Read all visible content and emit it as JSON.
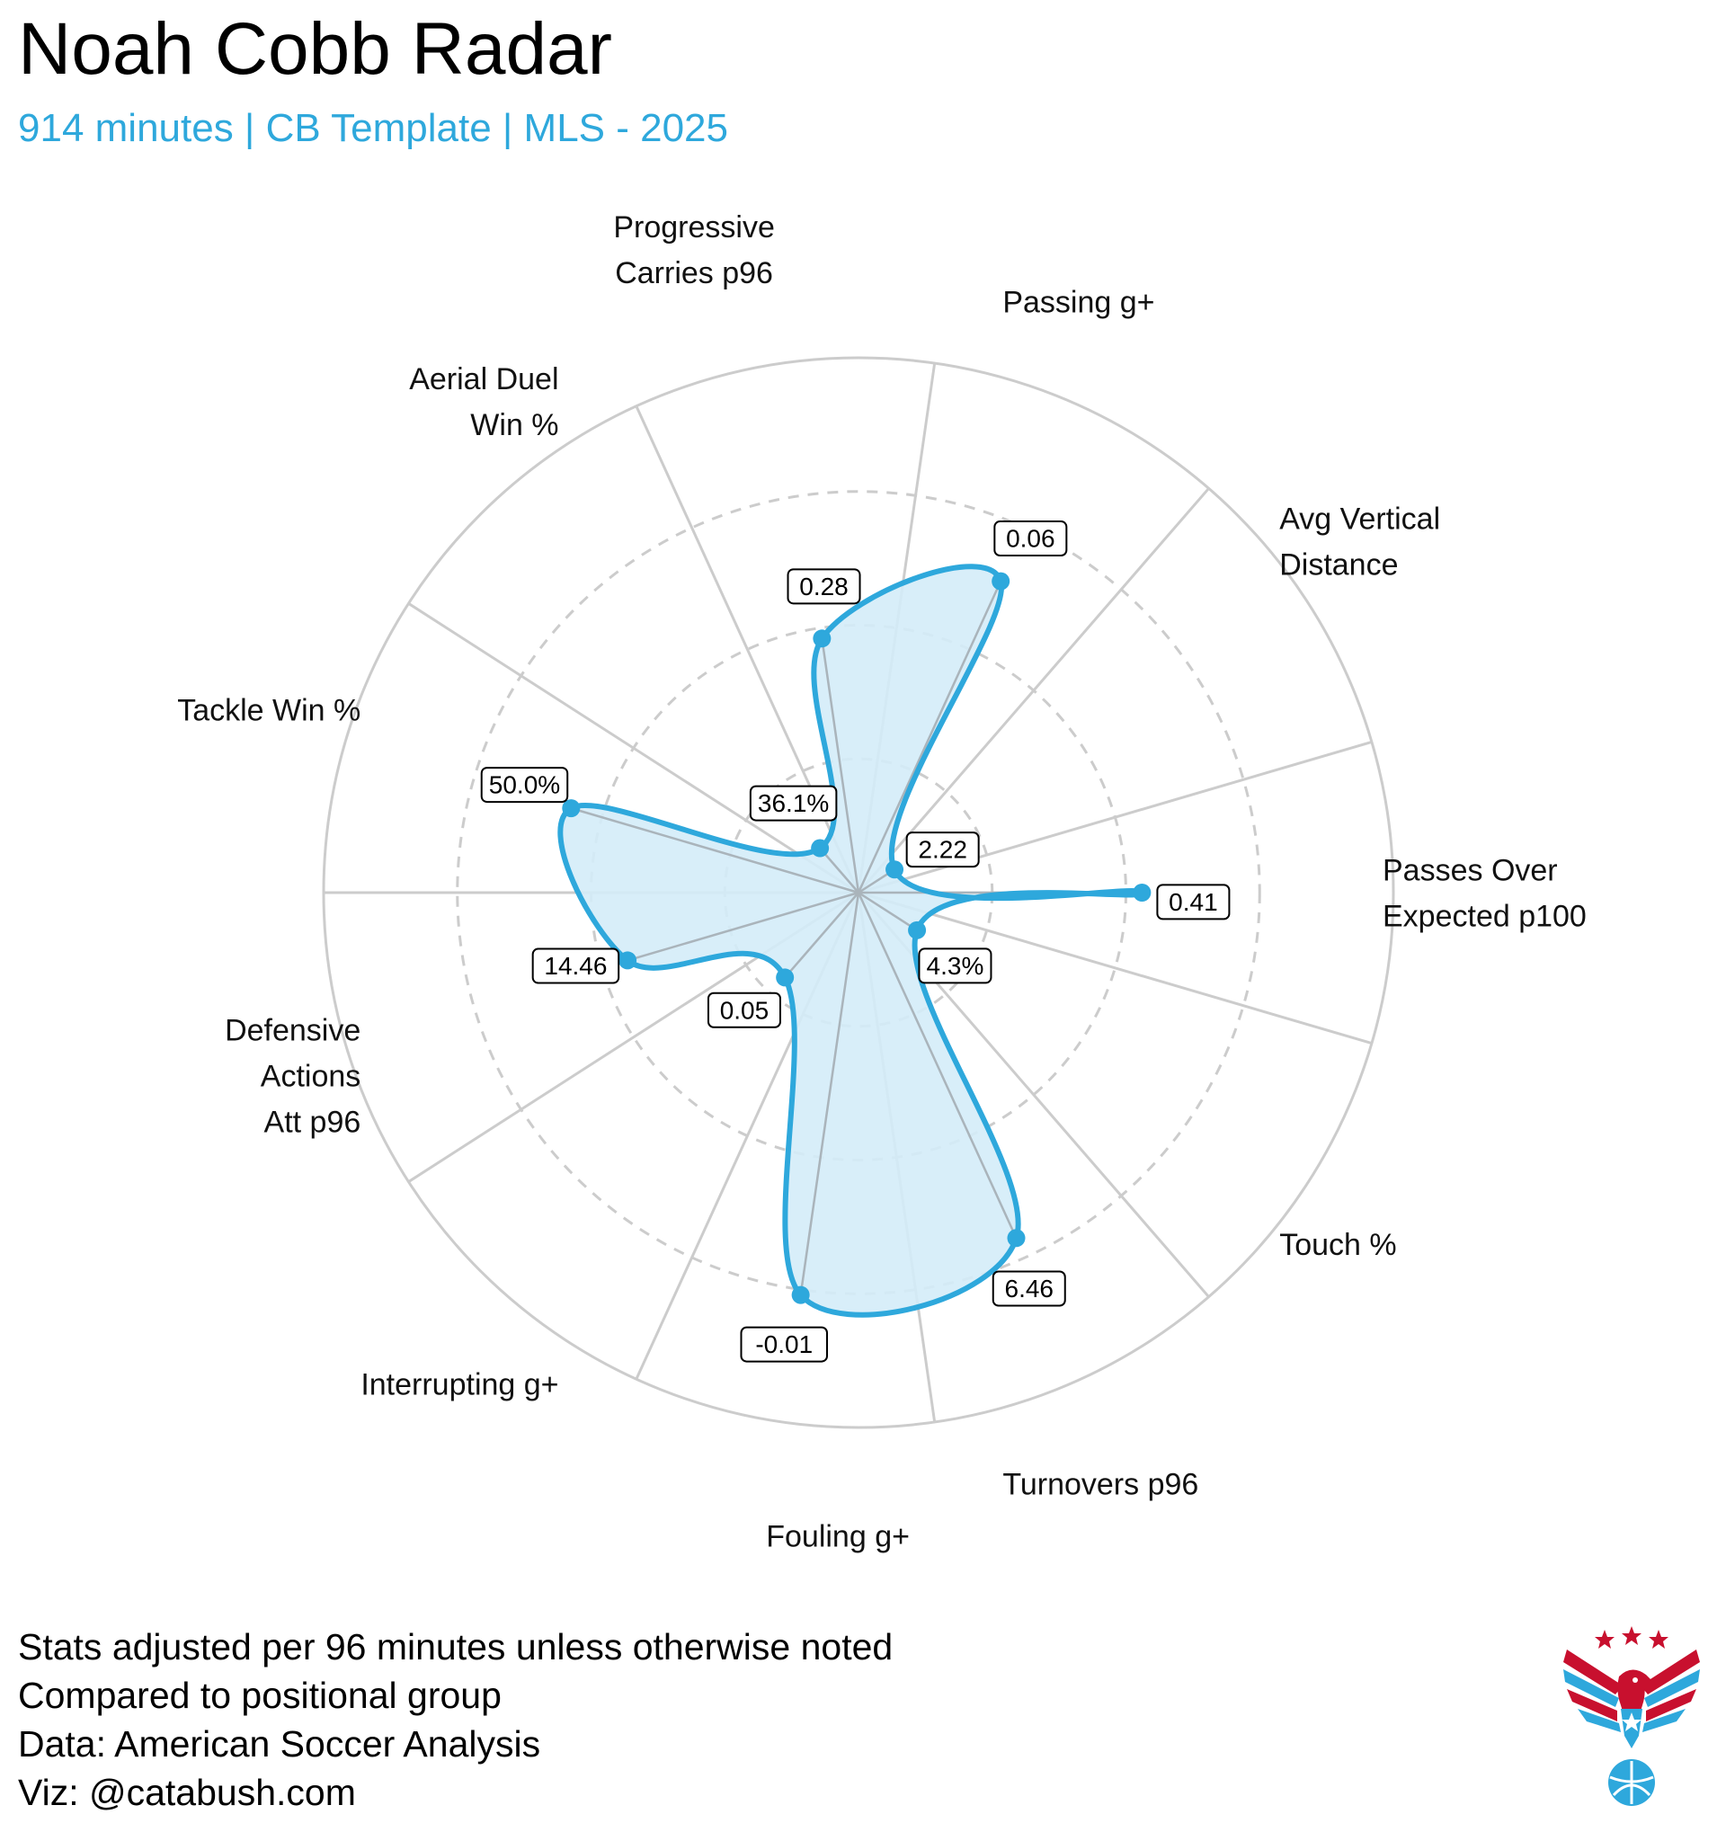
{
  "title": "Noah Cobb Radar",
  "subtitle": "914 minutes | CB Template | MLS - 2025",
  "footer": [
    "Stats adjusted per 96 minutes unless otherwise noted",
    "Compared to positional group",
    "Data: American Soccer Analysis",
    "Viz: @catabush.com"
  ],
  "colors": {
    "accent": "#2ea8dc",
    "fill": "#d4ecf8",
    "grid": "#cccccc"
  },
  "chart_data": {
    "type": "radar",
    "title": "Noah Cobb Radar",
    "value_scale": "percentile",
    "range": [
      0,
      100
    ],
    "rings": [
      25,
      50,
      75,
      100
    ],
    "dashed_rings": [
      25,
      50,
      75
    ],
    "axes": [
      {
        "label": [
          "Passes Over",
          "Expected p100"
        ],
        "value": 53,
        "display": "0.41"
      },
      {
        "label": [
          "Touch %"
        ],
        "value": 13,
        "display": "4.3%"
      },
      {
        "label": [
          "Turnovers p96"
        ],
        "value": 71,
        "display": "6.46"
      },
      {
        "label": [
          "Fouling g+"
        ],
        "value": 76,
        "display": "-0.01"
      },
      {
        "label": [
          "Interrupting g+"
        ],
        "value": 21,
        "display": "0.05"
      },
      {
        "label": [
          "Defensive",
          "Actions",
          "Att p96"
        ],
        "value": 45,
        "display": "14.46"
      },
      {
        "label": [
          "Tackle Win %"
        ],
        "value": 56,
        "display": "50.0%"
      },
      {
        "label": [
          "Aerial Duel",
          "Win %"
        ],
        "value": 11,
        "display": "36.1%"
      },
      {
        "label": [
          "Progressive",
          "Carries p96"
        ],
        "value": 48,
        "display": "0.28"
      },
      {
        "label": [
          "Passing g+"
        ],
        "value": 64,
        "display": "0.06"
      },
      {
        "label": [
          "Avg Vertical",
          "Distance"
        ],
        "value": 8,
        "display": "2.22"
      }
    ]
  },
  "logo": {
    "icon": "eagle-soccer-logo",
    "colors": [
      "#c8102e",
      "#2ea8dc"
    ]
  }
}
